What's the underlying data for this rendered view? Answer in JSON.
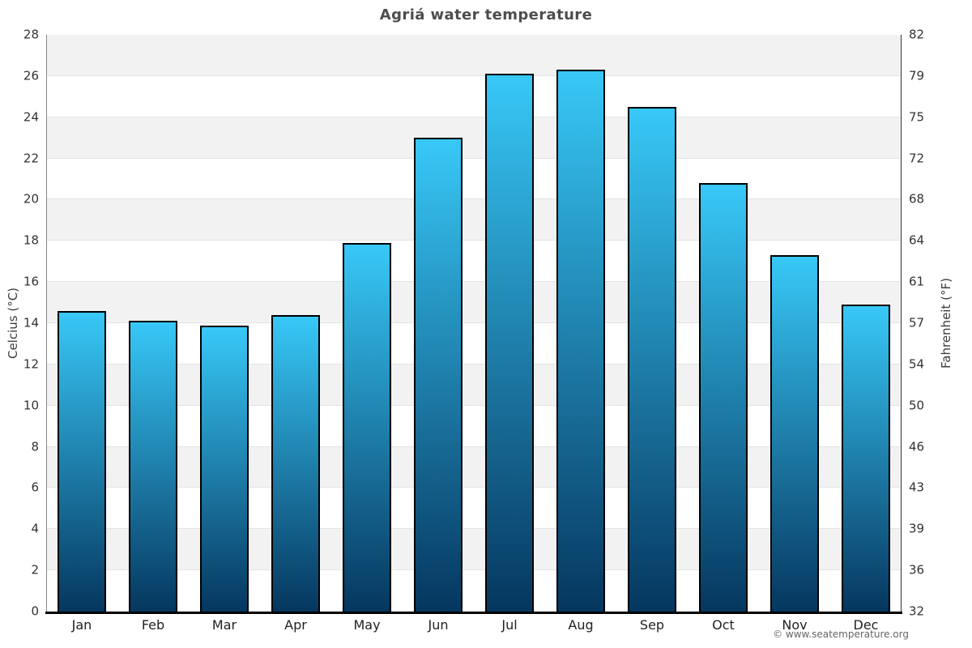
{
  "chart_data": {
    "type": "bar",
    "title": "Agriá water temperature",
    "categories": [
      "Jan",
      "Feb",
      "Mar",
      "Apr",
      "May",
      "Jun",
      "Jul",
      "Aug",
      "Sep",
      "Oct",
      "Nov",
      "Dec"
    ],
    "values": [
      14.6,
      14.1,
      13.9,
      14.4,
      17.9,
      23.0,
      26.1,
      26.3,
      24.5,
      20.8,
      17.3,
      14.9
    ],
    "ylabel": "Celcius (°C)",
    "ylabel_right": "Fahrenheit (°F)",
    "xlabel": "",
    "ylim": [
      0,
      28
    ],
    "yticks": [
      0,
      2,
      4,
      6,
      8,
      10,
      12,
      14,
      16,
      18,
      20,
      22,
      24,
      26,
      28
    ],
    "yticks_right": [
      "32",
      "36",
      "39",
      "43",
      "46",
      "50",
      "54",
      "57",
      "61",
      "64",
      "68",
      "72",
      "75",
      "79",
      "82"
    ],
    "grid": "alternating-horizontal-bands",
    "legend": "none"
  },
  "footer": {
    "copyright": "© www.seatemperature.org"
  },
  "colors": {
    "bar_top": "#38c8f7",
    "bar_bottom": "#05375f",
    "bar_border": "#000000",
    "band_shade": "#f2f2f2",
    "gridline": "#e3e3e3",
    "title": "#4d4d4d",
    "tick": "#333333",
    "month": "#222222",
    "axis_title": "#3c3c3c",
    "axis_line_left": "#888888",
    "axis_line_right": "#333333",
    "baseline": "#000000",
    "copyright": "#666666"
  }
}
